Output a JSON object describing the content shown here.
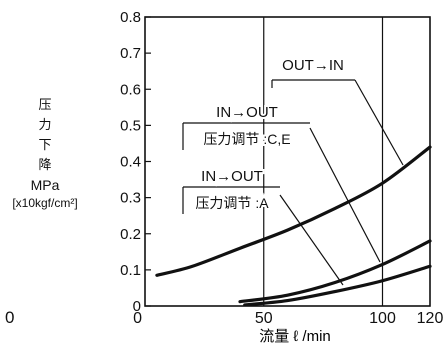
{
  "chart_data": {
    "type": "line",
    "xlabel": "流量 ℓ /min",
    "ylabel_lines": [
      "压",
      "力",
      "下",
      "降",
      "MPa",
      "[x10kgf/cm²]"
    ],
    "xlim": [
      0,
      120
    ],
    "ylim": [
      0,
      0.8
    ],
    "x_ticks": [
      0,
      50,
      100,
      120
    ],
    "y_ticks": [
      0,
      0.1,
      0.2,
      0.3,
      0.4,
      0.5,
      0.6,
      0.7,
      0.8
    ],
    "x_tick_labels": [
      "0",
      "50",
      "100",
      "120"
    ],
    "y_tick_labels": [
      "0",
      "0.1",
      "0.2",
      "0.3",
      "0.4",
      "0.5",
      "0.6",
      "0.7",
      "0.8"
    ],
    "grid": "vertical-at-50-and-100",
    "stray_label": "0",
    "series": [
      {
        "x": [
          5,
          20,
          40,
          60,
          80,
          100,
          120
        ],
        "y": [
          0.085,
          0.11,
          0.16,
          0.21,
          0.27,
          0.34,
          0.44
        ]
      },
      {
        "x": [
          40,
          60,
          80,
          100,
          120
        ],
        "y": [
          0.012,
          0.03,
          0.065,
          0.115,
          0.18
        ]
      },
      {
        "x": [
          42,
          60,
          80,
          100,
          120
        ],
        "y": [
          0.003,
          0.015,
          0.04,
          0.07,
          0.11
        ]
      }
    ],
    "annotations": [
      {
        "lines": [
          "OUT→IN"
        ],
        "points_to_series": 0
      },
      {
        "lines": [
          "IN→OUT",
          "压力调节 :C,E"
        ],
        "points_to_series": 1
      },
      {
        "lines": [
          "IN→OUT",
          "压力调节 :A"
        ],
        "points_to_series": 2
      }
    ]
  }
}
